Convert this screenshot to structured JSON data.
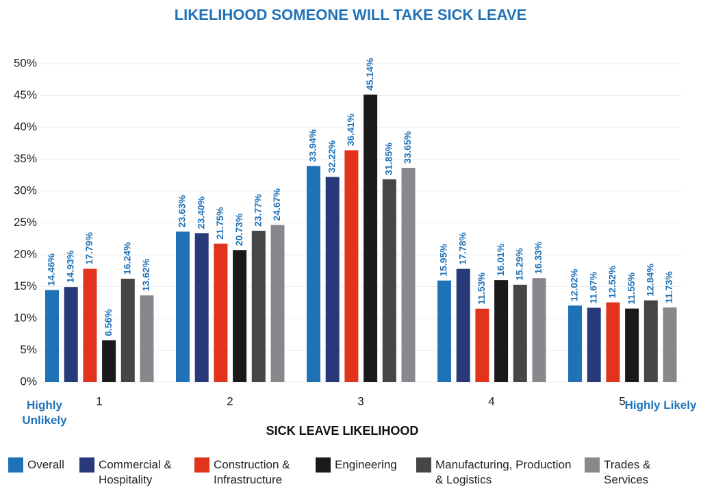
{
  "chart_data": {
    "type": "bar",
    "title": "LIKELIHOOD SOMEONE WILL TAKE SICK LEAVE",
    "x_label": "SICK LEAVE LIKELIHOOD",
    "annotations": [
      "Highly Unlikely",
      "Highly Likely"
    ],
    "categories": [
      "1",
      "2",
      "3",
      "4",
      "5"
    ],
    "ylim": [
      0,
      50
    ],
    "yticks": [
      {
        "value": 0,
        "label": "0%"
      },
      {
        "value": 5,
        "label": "5%"
      },
      {
        "value": 10,
        "label": "10%"
      },
      {
        "value": 15,
        "label": "15%"
      },
      {
        "value": 20,
        "label": "20%"
      },
      {
        "value": 25,
        "label": "25%"
      },
      {
        "value": 30,
        "label": "30%"
      },
      {
        "value": 35,
        "label": "35%"
      },
      {
        "value": 40,
        "label": "40%"
      },
      {
        "value": 45,
        "label": "45%"
      },
      {
        "value": 50,
        "label": "50%"
      }
    ],
    "grid": true,
    "series": [
      {
        "name": "Overall",
        "color": "#1f72b8",
        "values": [
          14.46,
          23.63,
          33.94,
          15.95,
          12.02
        ],
        "value_labels": [
          "14.46%",
          "23.63%",
          "33.94%",
          "15.95%",
          "12.02%"
        ]
      },
      {
        "name": "Commercial & Hospitality",
        "color": "#283a7a",
        "values": [
          14.93,
          23.4,
          32.22,
          17.78,
          11.67
        ],
        "value_labels": [
          "14.93%",
          "23.40%",
          "32.22%",
          "17.78%",
          "11.67%"
        ]
      },
      {
        "name": "Construction & Infrastructure",
        "color": "#e2341d",
        "values": [
          17.79,
          21.75,
          36.41,
          11.53,
          12.52
        ],
        "value_labels": [
          "17.79%",
          "21.75%",
          "36.41%",
          "11.53%",
          "12.52%"
        ]
      },
      {
        "name": "Engineering",
        "color": "#1a1a1a",
        "values": [
          6.56,
          20.73,
          45.14,
          16.01,
          11.55
        ],
        "value_labels": [
          "6.56%",
          "20.73%",
          "45.14%",
          "16.01%",
          "11.55%"
        ]
      },
      {
        "name": "Manufacturing, Production & Logistics",
        "color": "#464646",
        "values": [
          16.24,
          23.77,
          31.85,
          15.29,
          12.84
        ],
        "value_labels": [
          "16.24%",
          "23.77%",
          "31.85%",
          "15.29%",
          "12.84%"
        ]
      },
      {
        "name": "Trades & Services",
        "color": "#88888c",
        "values": [
          13.62,
          24.67,
          33.65,
          16.33,
          11.73
        ],
        "value_labels": [
          "13.62%",
          "24.67%",
          "33.65%",
          "16.33%",
          "11.73%"
        ]
      }
    ]
  }
}
